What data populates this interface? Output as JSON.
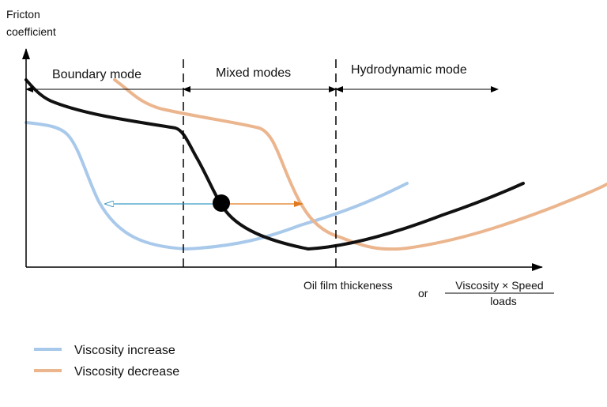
{
  "y_axis_label_line1": "Fricton",
  "y_axis_label_line2": "coefficient",
  "x_axis_label": "Oil film thickeness",
  "x_axis_or": "or",
  "x_axis_fraction_numerator": "Viscosity × Speed",
  "x_axis_fraction_denominator": "loads",
  "regions": [
    {
      "label": "Boundary mode"
    },
    {
      "label": "Mixed modes"
    },
    {
      "label": "Hydrodynamic mode"
    }
  ],
  "legend": [
    {
      "label": "Viscosity increase",
      "color": "#a9c9eb"
    },
    {
      "label": "Viscosity decrease",
      "color": "#ebb58e"
    }
  ],
  "colors": {
    "main_curve": "#111111",
    "increase_arrow": "#3a9bc4",
    "decrease_arrow": "#e07a1f"
  }
}
